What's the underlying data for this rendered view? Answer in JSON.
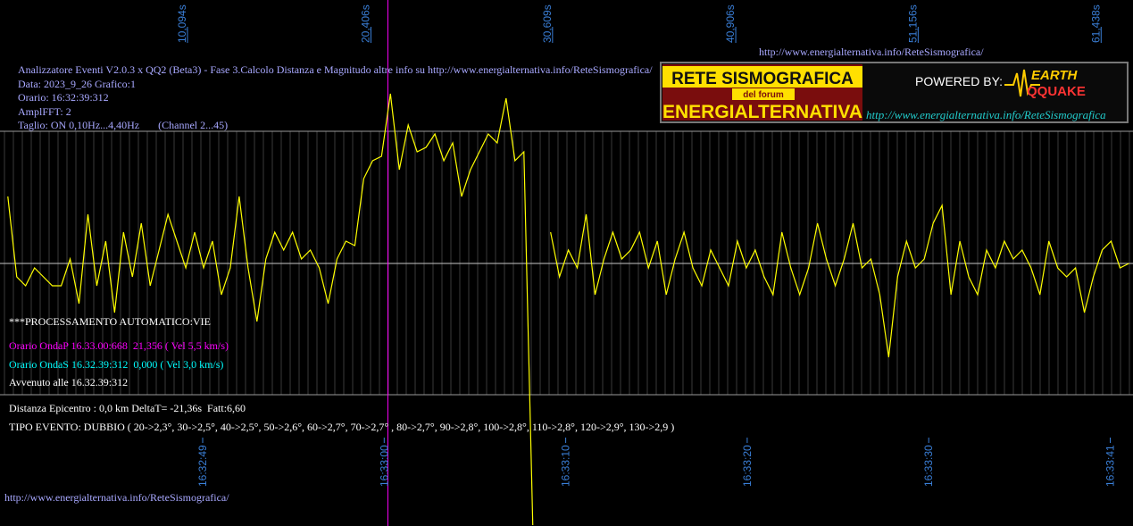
{
  "chart_data": {
    "type": "line",
    "color": "#ffff00",
    "header_lines": [
      "Analizzatore Eventi V2.0.3 x QQ2 (Beta3) - Fase 3.Calcolo Distanza e Magnitudo altre info su http://www.energialternativa.info/ReteSismografica/",
      "Data: 2023_9_26 Grafico:1",
      "Orario: 16:32:39:312",
      "AmplFFT: 2",
      "Taglio: ON 0,10Hz...4,40Hz       (Channel 2...45)"
    ],
    "url_top": "http://www.energialternativa.info/ReteSismografica/",
    "url_bottom": "http://www.energialternativa.info/ReteSismografica/",
    "processing": "***PROCESSAMENTO AUTOMATICO:VIE",
    "wave_p": "Orario OndaP 16.33.00:668  21,356 ( Vel 5,5 km/s)",
    "wave_s": "Orario OndaS 16.32.39:312  0,000 ( Vel 3,0 km/s)",
    "occurred": "Avvenuto alle 16.32.39:312",
    "distance": "Distanza Epicentro : 0,0 km DeltaT= -21,36s  Fatt:6,60",
    "event_type": "TIPO EVENTO: DUBBIO ( 20->2,3°, 30->2,5°, 40->2,5°, 50->2,6°, 60->2,7°, 70->2,7° , 80->2,7°, 90->2,8°, 100->2,8°, 110->2,8°, 120->2,9°, 130->2,9 )",
    "p_marker": 21.356,
    "p_marker_color": "#ff00ff",
    "xlim": [
      -0.44,
      63.23
    ],
    "ylim": [
      -294,
      295
    ],
    "xticks": [
      {
        "value": 10.094,
        "label": "10,094s"
      },
      {
        "value": 20.406,
        "label": "20,406s"
      },
      {
        "value": 30.609,
        "label": "30,609s"
      },
      {
        "value": 40.906,
        "label": "40,906s"
      },
      {
        "value": 51.156,
        "label": "51,156s"
      },
      {
        "value": 61.438,
        "label": "61,438s"
      }
    ],
    "x2ticks": [
      {
        "value": 10.95,
        "label": "16:32:49"
      },
      {
        "value": 21.15,
        "label": "16:33:00"
      },
      {
        "value": 31.35,
        "label": "16:33:10"
      },
      {
        "value": 41.55,
        "label": "16:33:20"
      },
      {
        "value": 51.75,
        "label": "16:33:30"
      },
      {
        "value": 61.95,
        "label": "16:33:41"
      }
    ],
    "x": [
      0,
      0.5,
      1,
      1.5,
      2,
      2.5,
      3,
      3.5,
      4,
      4.5,
      5,
      5.5,
      6,
      6.5,
      7,
      7.5,
      8,
      8.5,
      9,
      9.5,
      10,
      10.5,
      11,
      11.5,
      12,
      12.5,
      13,
      13.5,
      14,
      14.5,
      15,
      15.5,
      16,
      16.5,
      17,
      17.5,
      18,
      18.5,
      19,
      19.5,
      20,
      20.5,
      21,
      21.5,
      22,
      22.5,
      23,
      23.5,
      24,
      24.5,
      25,
      25.5,
      26,
      26.5,
      27,
      27.5,
      28,
      28.5,
      29,
      29.5,
      30,
      30.5,
      31,
      31.5,
      32,
      32.5,
      33,
      33.5,
      34,
      34.5,
      35,
      35.5,
      36,
      36.5,
      37,
      37.5,
      38,
      38.5,
      39,
      39.5,
      40,
      40.5,
      41,
      41.5,
      42,
      42.5,
      43,
      43.5,
      44,
      44.5,
      45,
      45.5,
      46,
      46.5,
      47,
      47.5,
      48,
      48.5,
      49,
      49.5,
      50,
      50.5,
      51,
      51.5,
      52,
      52.5,
      53,
      53.5,
      54,
      54.5,
      55,
      55.5,
      56,
      56.5,
      57,
      57.5,
      58,
      58.5,
      59,
      59.5,
      60,
      60.5,
      61,
      61.5,
      62,
      62.5,
      63
    ],
    "values": [
      75,
      -15,
      -25,
      -5,
      -15,
      -25,
      -25,
      5,
      -45,
      55,
      -25,
      25,
      -55,
      35,
      -15,
      45,
      -25,
      15,
      55,
      25,
      -5,
      35,
      -5,
      25,
      -35,
      -5,
      75,
      -5,
      -65,
      5,
      35,
      15,
      35,
      5,
      15,
      -5,
      -45,
      5,
      25,
      20,
      95,
      115,
      120,
      190,
      105,
      155,
      125,
      130,
      145,
      115,
      135,
      75,
      105,
      125,
      145,
      135,
      185,
      115,
      125,
      -293,
      null,
      35,
      -15,
      15,
      -5,
      55,
      -35,
      5,
      35,
      5,
      15,
      35,
      -5,
      25,
      -35,
      5,
      35,
      -5,
      -25,
      15,
      -5,
      -25,
      25,
      -5,
      15,
      -15,
      -35,
      35,
      -5,
      -35,
      -5,
      45,
      5,
      -25,
      5,
      45,
      -5,
      5,
      -35,
      -105,
      -15,
      25,
      -5,
      5,
      45,
      65,
      -35,
      25,
      -15,
      -35,
      15,
      -5,
      25,
      5,
      15,
      -5,
      -35,
      25,
      -5,
      -15,
      -5,
      -55,
      -15,
      15,
      25,
      -5,
      0
    ]
  },
  "logo": {
    "title": "RETE SISMOGRAFICA",
    "forum": "del forum",
    "brand": "ENERGIALTERNATIVA",
    "powered": "POWERED BY:",
    "earth": "EARTH",
    "quake": "QQUAKE",
    "url": "http://www.energialternativa.info/ReteSismografica"
  }
}
